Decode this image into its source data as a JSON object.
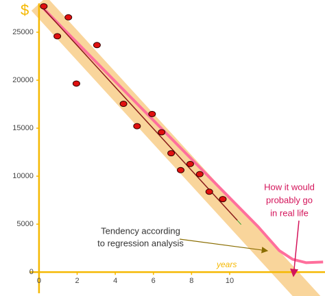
{
  "chart_data": {
    "type": "scatter",
    "symbol": "$",
    "x_label": "years",
    "xlim": [
      -0.5,
      15
    ],
    "ylim": [
      -2200,
      28000
    ],
    "xticks": [
      0,
      2,
      4,
      6,
      8,
      10
    ],
    "yticks": [
      0,
      5000,
      10000,
      15000,
      20000,
      25000
    ],
    "axis_color": "#f5b800",
    "points": {
      "color": "#e01010",
      "x": [
        0.25,
        0.96,
        1.54,
        1.96,
        3.04,
        4.43,
        5.14,
        5.93,
        6.43,
        6.93,
        7.43,
        7.93,
        8.43,
        8.93,
        9.64
      ],
      "values": [
        27700,
        24580,
        26550,
        19650,
        23660,
        17540,
        15210,
        16480,
        14580,
        12390,
        10630,
        11270,
        10210,
        8380,
        7610
      ]
    },
    "band": {
      "color": "#f7c77a",
      "x": [
        0,
        14.6
      ],
      "values": [
        27960,
        -3720
      ]
    },
    "lines": [
      {
        "color": "#2e9e2e",
        "x": [
          0.1,
          10.6
        ],
        "values": [
          27740,
          4960
        ]
      },
      {
        "color": "#ff6f9c",
        "x": [
          0.1,
          10.1,
          11.5,
          12.6,
          13.3,
          14.0,
          14.9
        ],
        "values": [
          27740,
          7540,
          4720,
          2250,
          1340,
          990,
          1060
        ]
      },
      {
        "color": "#8b1a1a",
        "x": [
          0.1,
          10.4
        ],
        "values": [
          27740,
          5400
        ]
      }
    ],
    "annotations": [
      {
        "lines": [
          "Tendency according",
          "to regression analysis"
        ],
        "color": "#333333"
      },
      {
        "lines": [
          "How it would",
          "probably go",
          "in real life"
        ],
        "color": "#d4145a"
      }
    ]
  }
}
